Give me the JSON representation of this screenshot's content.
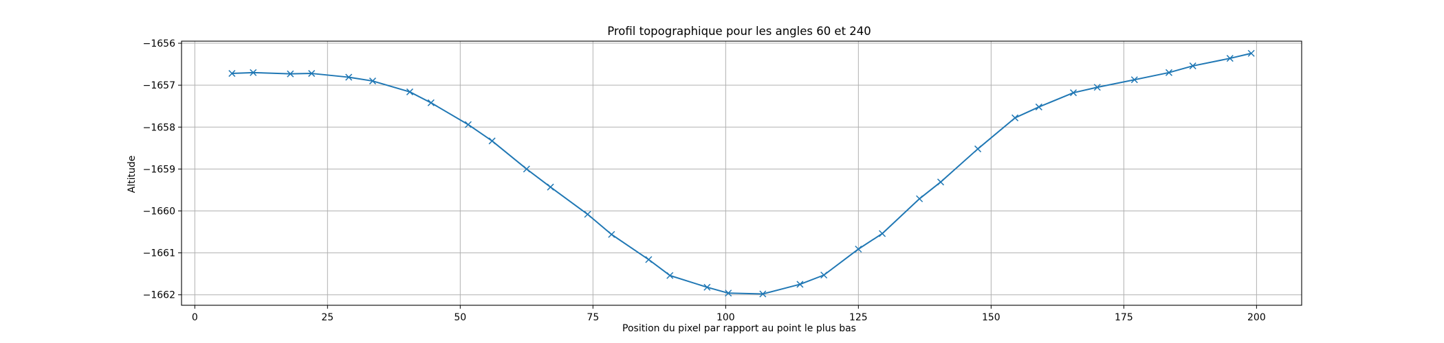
{
  "chart_data": {
    "type": "line",
    "title": "Profil topographique pour les angles 60 et 240",
    "xlabel": "Position du pixel par rapport au point le plus bas",
    "ylabel": "Altitude",
    "xlim": [
      -2.5,
      208.5
    ],
    "ylim": [
      -1662.25,
      -1655.95
    ],
    "xticks": [
      0,
      25,
      50,
      75,
      100,
      125,
      150,
      175,
      200
    ],
    "yticks": [
      -1656,
      -1657,
      -1658,
      -1659,
      -1660,
      -1661,
      -1662
    ],
    "xtick_labels": [
      "0",
      "25",
      "50",
      "75",
      "100",
      "125",
      "150",
      "175",
      "200"
    ],
    "ytick_labels": [
      "−1656",
      "−1657",
      "−1658",
      "−1659",
      "−1660",
      "−1661",
      "−1662"
    ],
    "grid": true,
    "marker": "x",
    "color": "#1f77b4",
    "series": [
      {
        "x": [
          7,
          11,
          18,
          22,
          29,
          33.5,
          40.5,
          44.5,
          51.5,
          56,
          62.5,
          67,
          74,
          78.5,
          85.5,
          89.5,
          96.5,
          100.5,
          107,
          114,
          118.5,
          125,
          129.5,
          136.5,
          140.5,
          147.5,
          154.5,
          159,
          165.5,
          170,
          177,
          183.5,
          188,
          195,
          199
        ],
        "y": [
          -1656.72,
          -1656.7,
          -1656.73,
          -1656.72,
          -1656.81,
          -1656.9,
          -1657.16,
          -1657.42,
          -1657.94,
          -1658.33,
          -1659.0,
          -1659.43,
          -1660.08,
          -1660.56,
          -1661.16,
          -1661.54,
          -1661.82,
          -1661.96,
          -1661.98,
          -1661.75,
          -1661.53,
          -1660.91,
          -1660.54,
          -1659.71,
          -1659.31,
          -1658.52,
          -1657.78,
          -1657.52,
          -1657.18,
          -1657.05,
          -1656.87,
          -1656.7,
          -1656.54,
          -1656.36,
          -1656.24
        ]
      }
    ]
  }
}
